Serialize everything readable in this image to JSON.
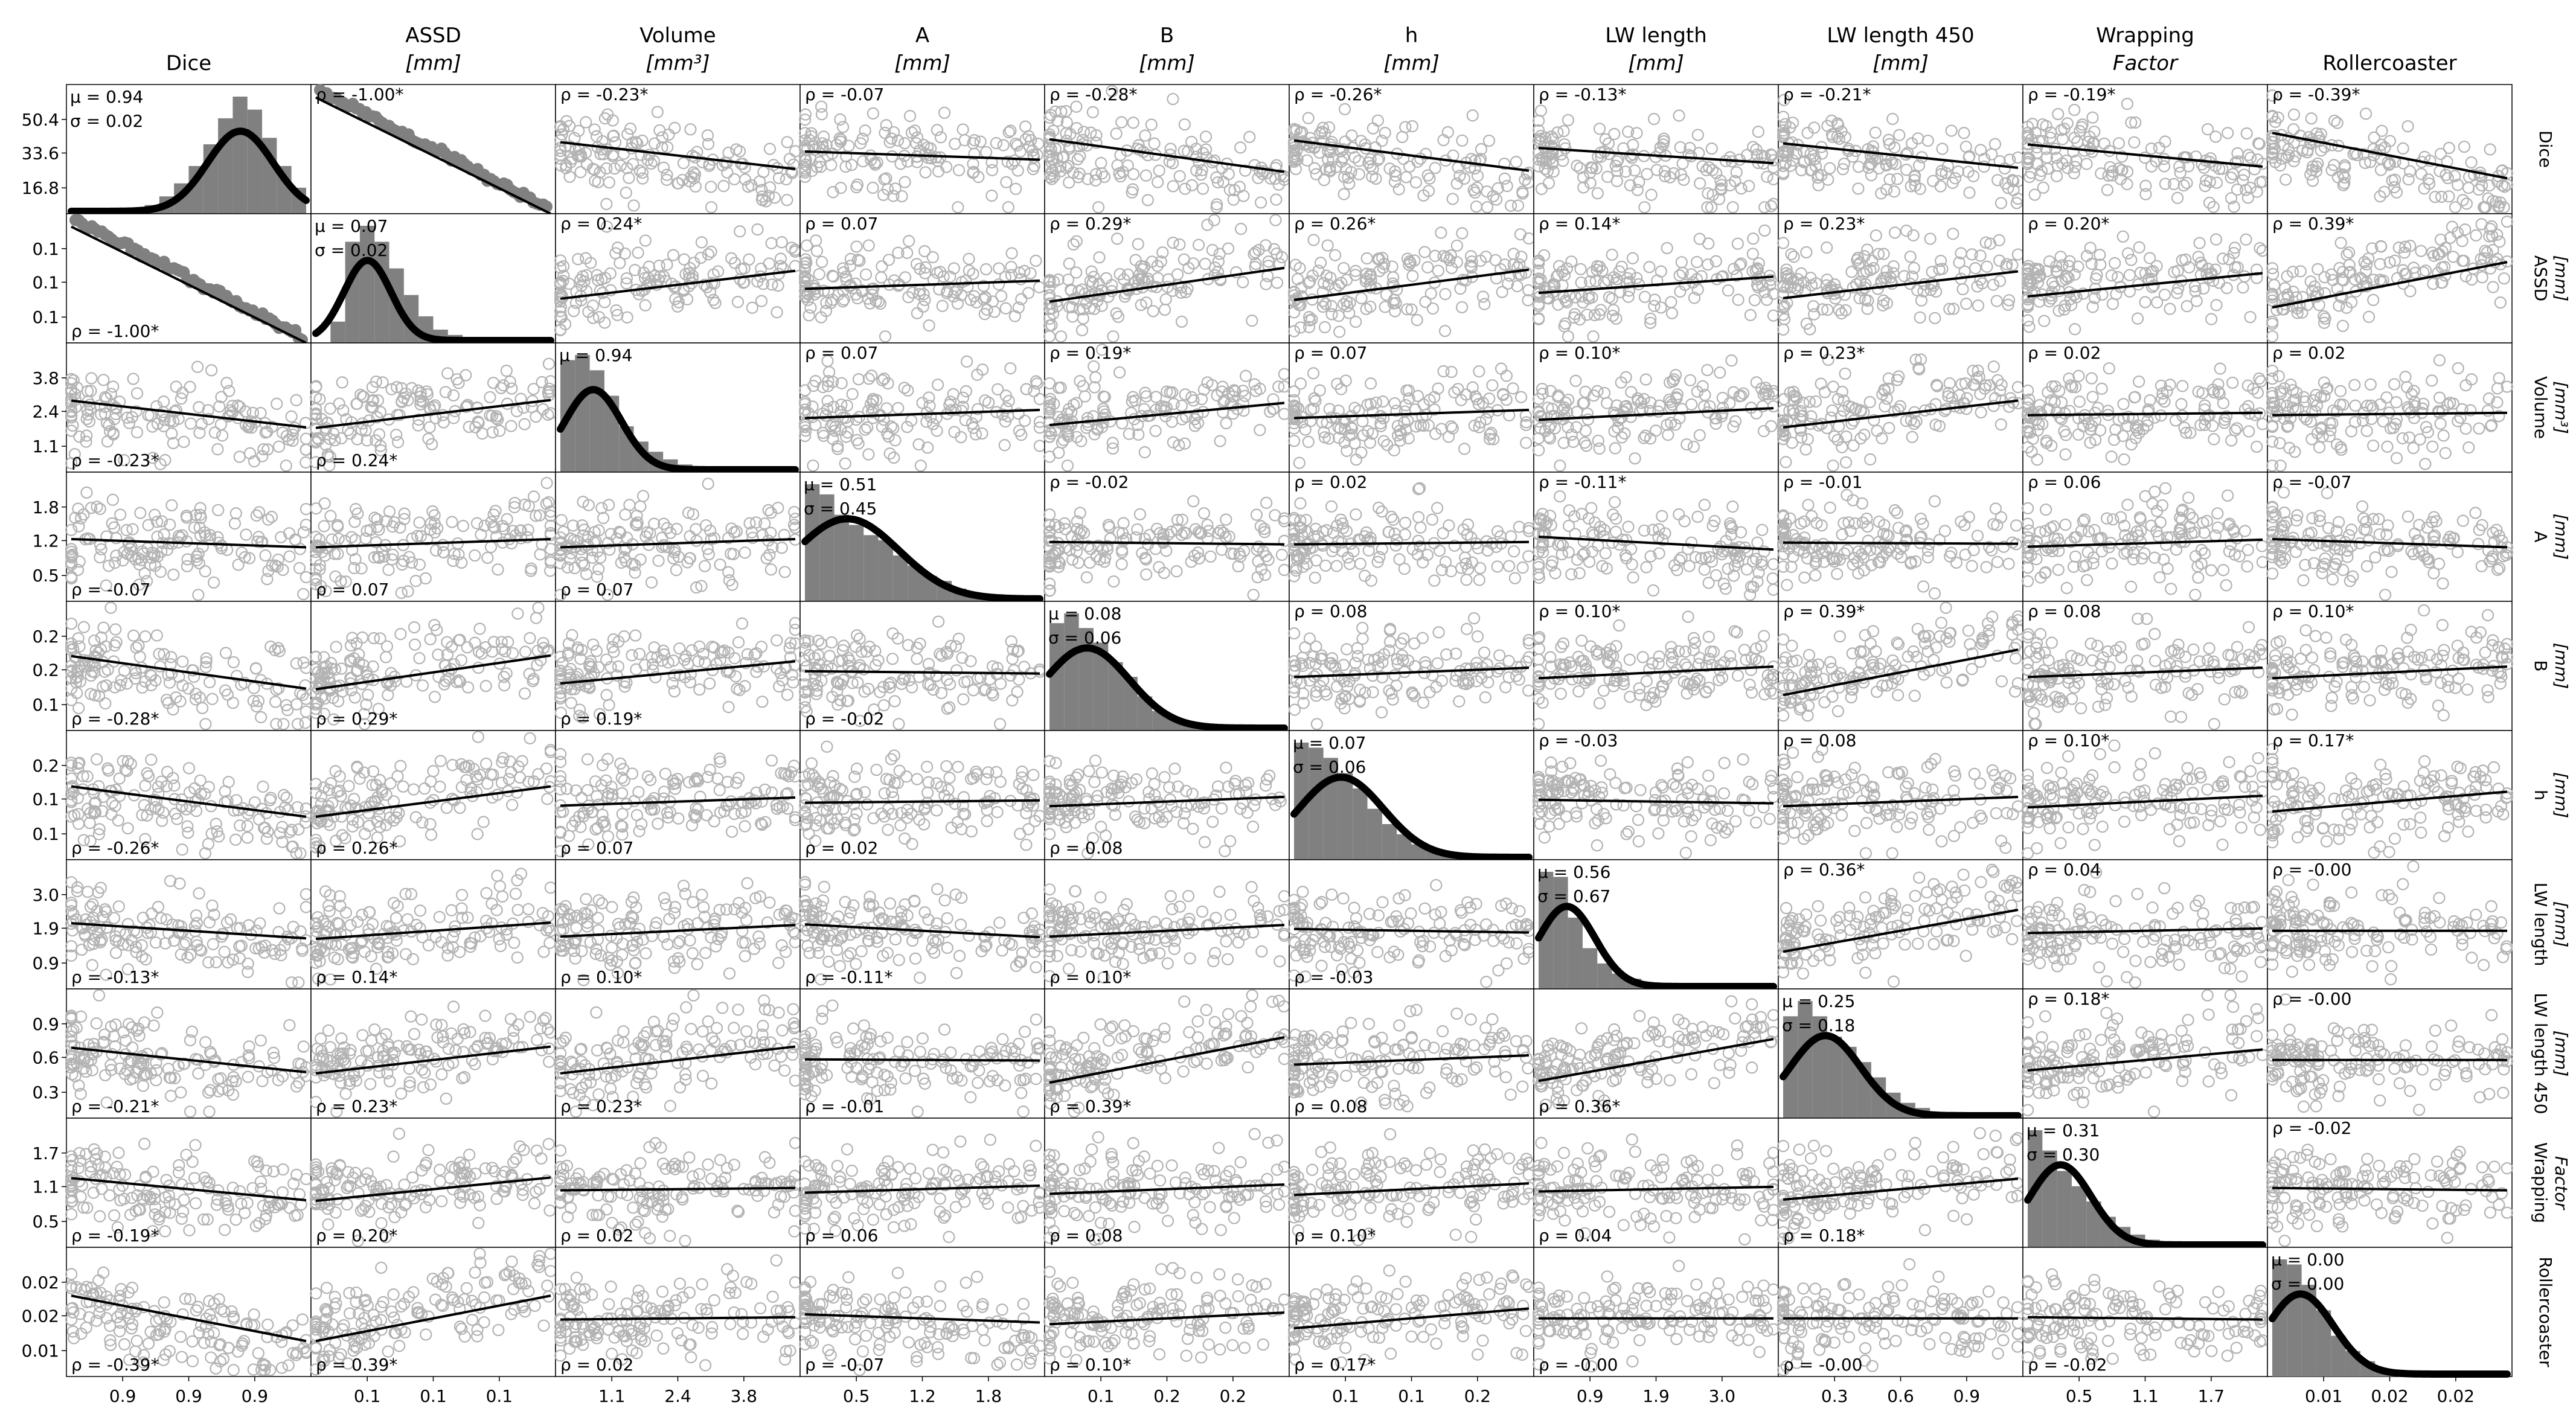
{
  "figure": {
    "variables": [
      {
        "key": "dice",
        "top_line1": "Dice",
        "top_line2": "",
        "right_line1": "Dice",
        "right_line2": ""
      },
      {
        "key": "assd",
        "top_line1": "ASSD",
        "top_line2": "[mm]",
        "right_line1": "ASSD",
        "right_line2": "[mm]"
      },
      {
        "key": "volume",
        "top_line1": "Volume",
        "top_line2": "[mm³]",
        "right_line1": "Volume",
        "right_line2": "[mm³]"
      },
      {
        "key": "a",
        "top_line1": "A",
        "top_line2": "[mm]",
        "right_line1": "A",
        "right_line2": "[mm]"
      },
      {
        "key": "b",
        "top_line1": "B",
        "top_line2": "[mm]",
        "right_line1": "B",
        "right_line2": "[mm]"
      },
      {
        "key": "h",
        "top_line1": "h",
        "top_line2": "[mm]",
        "right_line1": "h",
        "right_line2": "[mm]"
      },
      {
        "key": "lw",
        "top_line1": "LW length",
        "top_line2": "[mm]",
        "right_line1": "LW length",
        "right_line2": "[mm]"
      },
      {
        "key": "lw450",
        "top_line1": "LW length 450",
        "top_line2": "[mm]",
        "right_line1": "LW length 450",
        "right_line2": "[mm]"
      },
      {
        "key": "wrap",
        "top_line1": "Wrapping",
        "top_line2": "Factor",
        "right_line1": "Wrapping",
        "right_line2": "Factor"
      },
      {
        "key": "roller",
        "top_line1": "Rollercoaster",
        "top_line2": "",
        "right_line1": "Rollercoaster",
        "right_line2": ""
      }
    ],
    "y_ticks": [
      [
        "50.4",
        "33.6",
        "16.8"
      ],
      [
        "0.1",
        "0.1",
        "0.1"
      ],
      [
        "3.8",
        "2.4",
        "1.1"
      ],
      [
        "1.8",
        "1.2",
        "0.5"
      ],
      [
        "0.2",
        "0.2",
        "0.1"
      ],
      [
        "0.2",
        "0.1",
        "0.1"
      ],
      [
        "3.0",
        "1.9",
        "0.9"
      ],
      [
        "0.9",
        "0.6",
        "0.3"
      ],
      [
        "1.7",
        "1.1",
        "0.5"
      ],
      [
        "0.02",
        "0.02",
        "0.01"
      ]
    ],
    "x_ticks": [
      [
        "0.9",
        "0.9",
        "0.9"
      ],
      [
        "0.1",
        "0.1",
        "0.1"
      ],
      [
        "1.1",
        "2.4",
        "3.8"
      ],
      [
        "0.5",
        "1.2",
        "1.8"
      ],
      [
        "0.1",
        "0.2",
        "0.2"
      ],
      [
        "0.1",
        "0.1",
        "0.2"
      ],
      [
        "0.9",
        "1.9",
        "3.0"
      ],
      [
        "0.3",
        "0.6",
        "0.9"
      ],
      [
        "0.5",
        "1.1",
        "1.7"
      ],
      [
        "0.01",
        "0.02",
        "0.02"
      ]
    ],
    "colors": {
      "scatter": "#b3b3b3",
      "hist": "#808080",
      "fit": "#000000",
      "axis": "#000000"
    }
  },
  "chart_data": {
    "type": "scatter",
    "description_kind": "pair-plot matrix with histograms on the diagonal",
    "diagonal_stats": [
      {
        "mu": "0.94",
        "sigma": "0.02"
      },
      {
        "mu": "0.07",
        "sigma": "0.02"
      },
      {
        "mu": "0.94",
        "sigma": ""
      },
      {
        "mu": "0.51",
        "sigma": "0.45"
      },
      {
        "mu": "0.08",
        "sigma": "0.06"
      },
      {
        "mu": "0.07",
        "sigma": "0.06"
      },
      {
        "mu": "0.56",
        "sigma": "0.67"
      },
      {
        "mu": "0.25",
        "sigma": "0.18"
      },
      {
        "mu": "0.31",
        "sigma": "0.30"
      },
      {
        "mu": "0.00",
        "sigma": "0.00"
      }
    ],
    "rho": [
      [
        null,
        "-1.00*",
        "-0.23*",
        "-0.07",
        "-0.28*",
        "-0.26*",
        "-0.13*",
        "-0.21*",
        "-0.19*",
        "-0.39*"
      ],
      [
        "-1.00*",
        null,
        "0.24*",
        "0.07",
        "0.29*",
        "0.26*",
        "0.14*",
        "0.23*",
        "0.20*",
        "0.39*"
      ],
      [
        "-0.23*",
        "0.24*",
        null,
        "0.07",
        "0.19*",
        "0.07",
        "0.10*",
        "0.23*",
        "0.02",
        "0.02"
      ],
      [
        "-0.07",
        "0.07",
        "0.07",
        null,
        "-0.02",
        "0.02",
        "-0.11*",
        "-0.01",
        "0.06",
        "-0.07"
      ],
      [
        "-0.28*",
        "0.29*",
        "0.19*",
        "-0.02",
        null,
        "0.08",
        "0.10*",
        "0.39*",
        "0.08",
        "0.10*"
      ],
      [
        "-0.26*",
        "0.26*",
        "0.07",
        "0.02",
        "0.08",
        null,
        "-0.03",
        "0.08",
        "0.10*",
        "0.17*"
      ],
      [
        "-0.13*",
        "0.14*",
        "0.10*",
        "-0.11*",
        "0.10*",
        "-0.03",
        null,
        "0.36*",
        "0.04",
        "-0.00"
      ],
      [
        "-0.21*",
        "0.23*",
        "0.23*",
        "-0.01",
        "0.39*",
        "0.08",
        "0.36*",
        null,
        "0.18*",
        "-0.00"
      ],
      [
        "-0.19*",
        "0.20*",
        "0.02",
        "0.06",
        "0.08",
        "0.10*",
        "0.04",
        "0.18*",
        null,
        "-0.02"
      ],
      [
        "-0.39*",
        "0.39*",
        "0.02",
        "-0.07",
        "0.10*",
        "0.17*",
        "-0.00",
        "-0.00",
        "-0.02",
        null
      ]
    ],
    "hist_shapes": [
      {
        "counts": [
          0,
          0,
          0,
          1,
          2,
          4,
          8,
          14,
          22,
          32,
          44,
          54,
          48,
          35,
          22,
          12
        ],
        "fit_peak": 0.72,
        "fit_width": 0.14
      },
      {
        "counts": [
          0,
          8,
          38,
          44,
          38,
          28,
          18,
          10,
          5,
          3,
          1,
          0,
          0,
          0,
          0,
          0
        ],
        "fit_peak": 0.22,
        "fit_width": 0.1
      },
      {
        "counts": [
          44,
          46,
          40,
          30,
          18,
          12,
          8,
          5,
          3,
          2,
          1,
          1,
          0,
          0,
          0,
          0
        ],
        "fit_peak": 0.14,
        "fit_width": 0.12
      },
      {
        "counts": [
          46,
          42,
          34,
          30,
          26,
          24,
          18,
          14,
          10,
          8,
          5,
          3,
          2,
          1,
          0,
          0
        ],
        "fit_peak": 0.18,
        "fit_width": 0.22
      },
      {
        "counts": [
          44,
          48,
          42,
          36,
          28,
          22,
          14,
          8,
          5,
          3,
          2,
          1,
          0,
          0,
          0,
          0
        ],
        "fit_peak": 0.16,
        "fit_width": 0.18
      },
      {
        "counts": [
          46,
          44,
          40,
          34,
          28,
          20,
          14,
          10,
          6,
          4,
          2,
          1,
          0,
          0,
          0,
          0
        ],
        "fit_peak": 0.2,
        "fit_width": 0.18
      },
      {
        "counts": [
          46,
          44,
          28,
          16,
          10,
          6,
          4,
          2,
          1,
          1,
          0,
          0,
          0,
          0,
          0,
          0
        ],
        "fit_peak": 0.12,
        "fit_width": 0.12
      },
      {
        "counts": [
          40,
          46,
          40,
          32,
          28,
          22,
          16,
          10,
          6,
          4,
          2,
          0,
          0,
          0,
          0,
          0
        ],
        "fit_peak": 0.18,
        "fit_width": 0.15
      },
      {
        "counts": [
          46,
          38,
          30,
          24,
          18,
          12,
          8,
          5,
          3,
          2,
          1,
          0,
          0,
          0,
          0,
          0
        ],
        "fit_peak": 0.14,
        "fit_width": 0.13
      },
      {
        "counts": [
          46,
          44,
          36,
          26,
          16,
          10,
          6,
          3,
          2,
          1,
          0,
          0,
          0,
          0,
          0,
          0
        ],
        "fit_peak": 0.12,
        "fit_width": 0.14
      }
    ]
  }
}
